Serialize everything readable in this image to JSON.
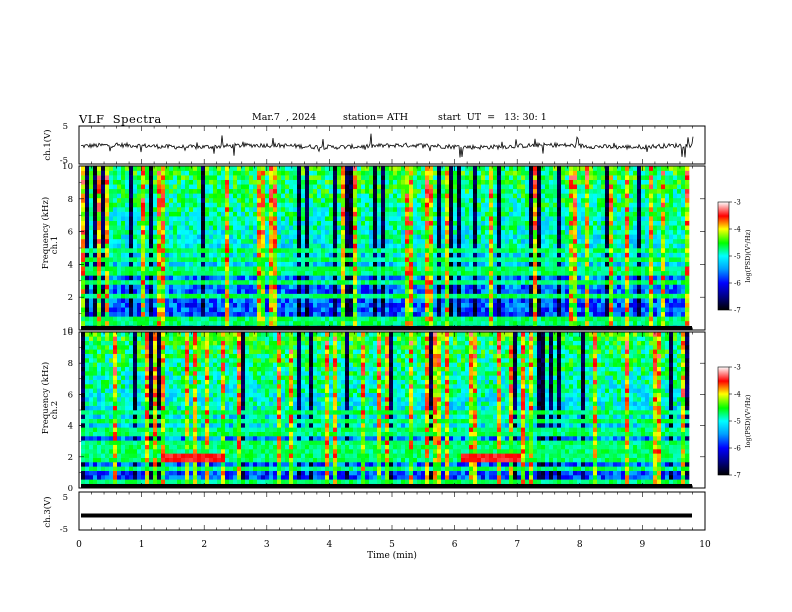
{
  "header": {
    "title": "VLF  Spectra",
    "date": "Mar.7  , 2024",
    "station": "station= ATH",
    "start": "start  UT  =   13: 30: 1"
  },
  "chart_data": [
    {
      "type": "line",
      "name": "ch1-waveform",
      "ylabel": "ch.1(V)",
      "ylim": [
        -5,
        5
      ],
      "yticks": [
        "5",
        "-5"
      ],
      "baseline": -0.3,
      "noise_amplitude": 0.6,
      "spike_amplitude": 3.0,
      "xlim": [
        0,
        10
      ]
    },
    {
      "type": "heatmap",
      "name": "ch1-spectrogram",
      "ylabel": "Frequency (kHz)",
      "channel_label": "ch.1",
      "ylim": [
        0,
        10
      ],
      "yticks": [
        "0",
        "2",
        "4",
        "6",
        "8",
        "10"
      ],
      "xlim": [
        0,
        10
      ],
      "colorbar": {
        "label": "log(PSD)(V²/Hz)",
        "range": [
          -7,
          -3
        ],
        "ticks": [
          "-3",
          "-4",
          "-5",
          "-6",
          "-7"
        ]
      },
      "signal_bands_khz": [
        0.3,
        0.7,
        2.2,
        2.8,
        3.6,
        4.2,
        4.8
      ],
      "sferic_density": "high"
    },
    {
      "type": "heatmap",
      "name": "ch2-spectrogram",
      "ylabel": "Frequency (kHz)",
      "channel_label": "ch.2",
      "ylim": [
        0,
        10
      ],
      "yticks": [
        "0",
        "2",
        "4",
        "6",
        "8",
        "10"
      ],
      "xlim": [
        0,
        10
      ],
      "colorbar": {
        "label": "log(PSD)(V²/Hz)",
        "range": [
          -7,
          -3
        ],
        "ticks": [
          "-3",
          "-4",
          "-5",
          "-6",
          "-7"
        ]
      },
      "signal_bands_khz": [
        0.5,
        1.2,
        1.8,
        2.0,
        2.5,
        3.0,
        3.6,
        4.2,
        4.8
      ],
      "strong_band": {
        "freq_khz": 2.0,
        "segments_min": [
          [
            1.25,
            2.3
          ],
          [
            6.1,
            7.0
          ]
        ]
      },
      "sferic_density": "high"
    },
    {
      "type": "line",
      "name": "ch3-waveform",
      "ylabel": "ch.3(V)",
      "ylim": [
        -5,
        5
      ],
      "yticks": [
        "5",
        "-5"
      ],
      "baseline": -1.2,
      "xlim": [
        0,
        10
      ],
      "xlabel": "Time  (min)",
      "xticks": [
        "0",
        "1",
        "2",
        "3",
        "4",
        "5",
        "6",
        "7",
        "8",
        "9",
        "10"
      ]
    }
  ]
}
